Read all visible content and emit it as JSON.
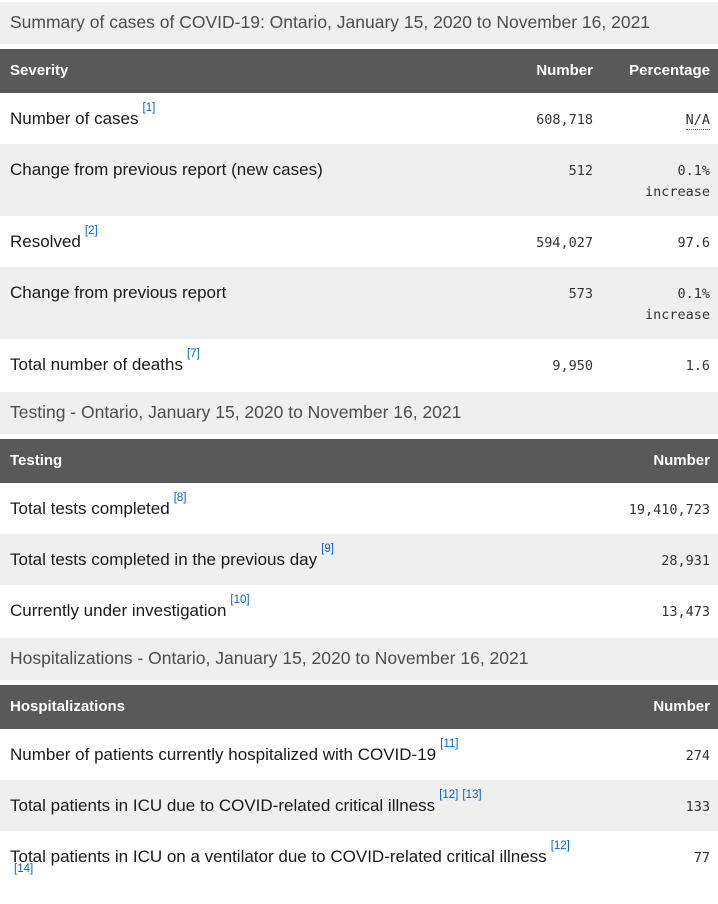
{
  "theme": {
    "header_bg": "#595959",
    "header_text": "#ffffff",
    "caption_bg": "#efefef",
    "stripe_bg": "#efefef",
    "link_color": "#0066cc",
    "label_color": "#1a1a1a",
    "number_color": "#333333"
  },
  "summary": {
    "caption": "Summary of cases of COVID-19: Ontario, January 15, 2020 to November 16, 2021",
    "headers": {
      "severity": "Severity",
      "number": "Number",
      "percentage": "Percentage"
    },
    "rows": [
      {
        "label": "Number of cases",
        "refs": [
          "[1]"
        ],
        "number": "608,718",
        "percentage": "N/A"
      },
      {
        "label": "Change from previous report (new cases)",
        "refs": [],
        "number": "512",
        "percentage": "0.1% increase"
      },
      {
        "label": "Resolved",
        "refs": [
          "[2]"
        ],
        "number": "594,027",
        "percentage": "97.6"
      },
      {
        "label": "Change from previous report",
        "refs": [],
        "number": "573",
        "percentage": "0.1% increase"
      },
      {
        "label": "Total number of deaths",
        "refs": [
          "[7]"
        ],
        "number": "9,950",
        "percentage": "1.6"
      }
    ]
  },
  "testing": {
    "caption": "Testing - Ontario, January 15, 2020 to November 16, 2021",
    "headers": {
      "testing": "Testing",
      "number": "Number"
    },
    "rows": [
      {
        "label": "Total tests completed",
        "refs": [
          "[8]"
        ],
        "number": "19,410,723"
      },
      {
        "label": "Total tests completed in the previous day",
        "refs": [
          "[9]"
        ],
        "number": "28,931"
      },
      {
        "label": "Currently under investigation",
        "refs": [
          "[10]"
        ],
        "number": "13,473"
      }
    ]
  },
  "hospitalizations": {
    "caption": "Hospitalizations - Ontario, January 15, 2020 to November 16, 2021",
    "headers": {
      "hospitalizations": "Hospitalizations",
      "number": "Number"
    },
    "rows": [
      {
        "label": "Number of patients currently hospitalized with COVID-19",
        "refs": [
          "[11]"
        ],
        "number": "274"
      },
      {
        "label": "Total patients in ICU due to COVID-related critical illness",
        "refs": [
          "[12]",
          "[13]"
        ],
        "number": "133"
      },
      {
        "label": "Total patients in ICU on a ventilator due to COVID-related critical illness",
        "refs": [
          "[12]",
          "[14]"
        ],
        "number": "77"
      }
    ]
  }
}
